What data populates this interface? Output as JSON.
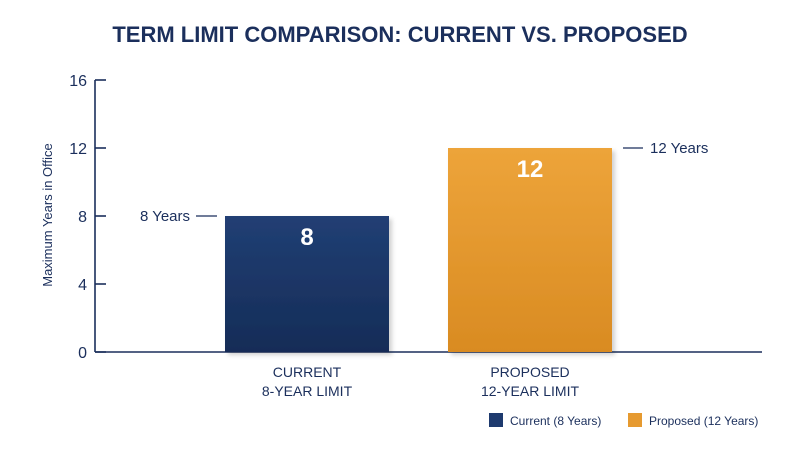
{
  "chart_data": {
    "type": "bar",
    "title": "TERM LIMIT COMPARISON: CURRENT VS. PROPOSED",
    "ylabel": "Maximum Years in Office",
    "xlabel": "",
    "ylim": [
      0,
      16
    ],
    "yticks": [
      0,
      4,
      8,
      12,
      16
    ],
    "grid": false,
    "legend_position": "bottom-right",
    "categories": [
      [
        "CURRENT",
        "8-YEAR LIMIT"
      ],
      [
        "PROPOSED",
        "12-YEAR LIMIT"
      ]
    ],
    "values": [
      8,
      12
    ],
    "bar_labels": [
      "8",
      "12"
    ],
    "annotations": [
      "8 Years",
      "12 Years"
    ],
    "colors": {
      "title": "#1b2f5c",
      "axis": "#1b2f5c",
      "text": "#1b2f5c",
      "bar_top": [
        "#213f74",
        "#eda43a"
      ],
      "bar_bottom": [
        "#152c57",
        "#d98b22"
      ],
      "bar_text": "#ffffff"
    },
    "legend": [
      {
        "label": "Current (8 Years)",
        "color": "#1e3a6e"
      },
      {
        "label": "Proposed (12 Years)",
        "color": "#e69a30"
      }
    ]
  }
}
